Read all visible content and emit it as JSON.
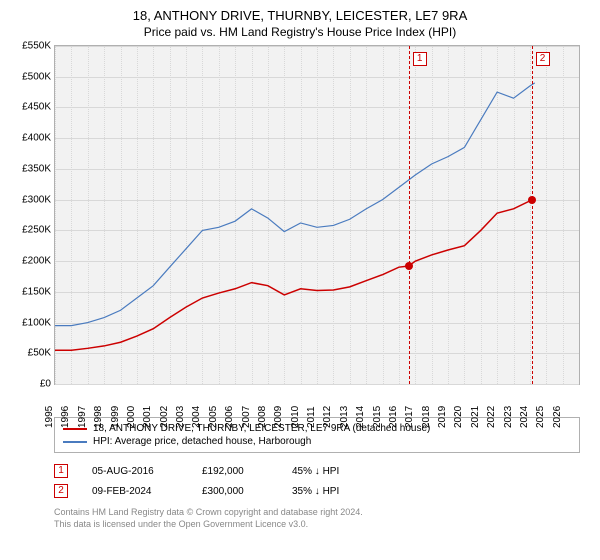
{
  "title": {
    "line1": "18, ANTHONY DRIVE, THURNBY, LEICESTER, LE7 9RA",
    "line2": "Price paid vs. HM Land Registry's House Price Index (HPI)"
  },
  "chart": {
    "type": "line",
    "background_color": "#f2f2f2",
    "grid_color": "#d8d8d8",
    "border_color": "#b0b0b0",
    "xlim": [
      1995,
      2027
    ],
    "ylim": [
      0,
      550
    ],
    "x_ticks": [
      1995,
      1996,
      1997,
      1998,
      1999,
      2000,
      2001,
      2002,
      2003,
      2004,
      2005,
      2006,
      2007,
      2008,
      2009,
      2010,
      2011,
      2012,
      2013,
      2014,
      2015,
      2016,
      2017,
      2018,
      2019,
      2020,
      2021,
      2022,
      2023,
      2024,
      2025,
      2026
    ],
    "y_ticks": [
      0,
      50,
      100,
      150,
      200,
      250,
      300,
      350,
      400,
      450,
      500,
      550
    ],
    "y_tick_prefix": "£",
    "y_tick_suffix": "K",
    "tick_fontsize": 10,
    "series": [
      {
        "name": "property",
        "label": "18, ANTHONY DRIVE, THURNBY, LEICESTER, LE7 9RA (detached house)",
        "color": "#cc0000",
        "line_width": 1.5,
        "points": [
          [
            1995,
            55
          ],
          [
            1996,
            55
          ],
          [
            1997,
            58
          ],
          [
            1998,
            62
          ],
          [
            1999,
            68
          ],
          [
            2000,
            78
          ],
          [
            2001,
            90
          ],
          [
            2002,
            108
          ],
          [
            2003,
            125
          ],
          [
            2004,
            140
          ],
          [
            2005,
            148
          ],
          [
            2006,
            155
          ],
          [
            2007,
            165
          ],
          [
            2008,
            160
          ],
          [
            2009,
            145
          ],
          [
            2010,
            155
          ],
          [
            2011,
            152
          ],
          [
            2012,
            153
          ],
          [
            2013,
            158
          ],
          [
            2014,
            168
          ],
          [
            2015,
            178
          ],
          [
            2016,
            190
          ],
          [
            2016.6,
            192
          ],
          [
            2017,
            200
          ],
          [
            2018,
            210
          ],
          [
            2019,
            218
          ],
          [
            2020,
            225
          ],
          [
            2021,
            250
          ],
          [
            2022,
            278
          ],
          [
            2023,
            285
          ],
          [
            2024,
            298
          ],
          [
            2024.1,
            300
          ]
        ]
      },
      {
        "name": "hpi",
        "label": "HPI: Average price, detached house, Harborough",
        "color": "#4a7bbf",
        "line_width": 1.2,
        "points": [
          [
            1995,
            95
          ],
          [
            1996,
            95
          ],
          [
            1997,
            100
          ],
          [
            1998,
            108
          ],
          [
            1999,
            120
          ],
          [
            2000,
            140
          ],
          [
            2001,
            160
          ],
          [
            2002,
            190
          ],
          [
            2003,
            220
          ],
          [
            2004,
            250
          ],
          [
            2005,
            255
          ],
          [
            2006,
            265
          ],
          [
            2007,
            285
          ],
          [
            2008,
            270
          ],
          [
            2009,
            248
          ],
          [
            2010,
            262
          ],
          [
            2011,
            255
          ],
          [
            2012,
            258
          ],
          [
            2013,
            268
          ],
          [
            2014,
            285
          ],
          [
            2015,
            300
          ],
          [
            2016,
            320
          ],
          [
            2017,
            340
          ],
          [
            2018,
            358
          ],
          [
            2019,
            370
          ],
          [
            2020,
            385
          ],
          [
            2021,
            430
          ],
          [
            2022,
            475
          ],
          [
            2023,
            465
          ],
          [
            2024,
            485
          ],
          [
            2024.3,
            490
          ]
        ]
      }
    ],
    "markers": [
      {
        "id": "1",
        "x": 2016.6,
        "y": 192,
        "color": "#cc0000"
      },
      {
        "id": "2",
        "x": 2024.1,
        "y": 300,
        "color": "#cc0000"
      }
    ]
  },
  "events": [
    {
      "id": "1",
      "date": "05-AUG-2016",
      "price": "£192,000",
      "pct": "45% ↓ HPI",
      "color": "#cc0000"
    },
    {
      "id": "2",
      "date": "09-FEB-2024",
      "price": "£300,000",
      "pct": "35% ↓ HPI",
      "color": "#cc0000"
    }
  ],
  "footer": {
    "line1": "Contains HM Land Registry data © Crown copyright and database right 2024.",
    "line2": "This data is licensed under the Open Government Licence v3.0."
  }
}
